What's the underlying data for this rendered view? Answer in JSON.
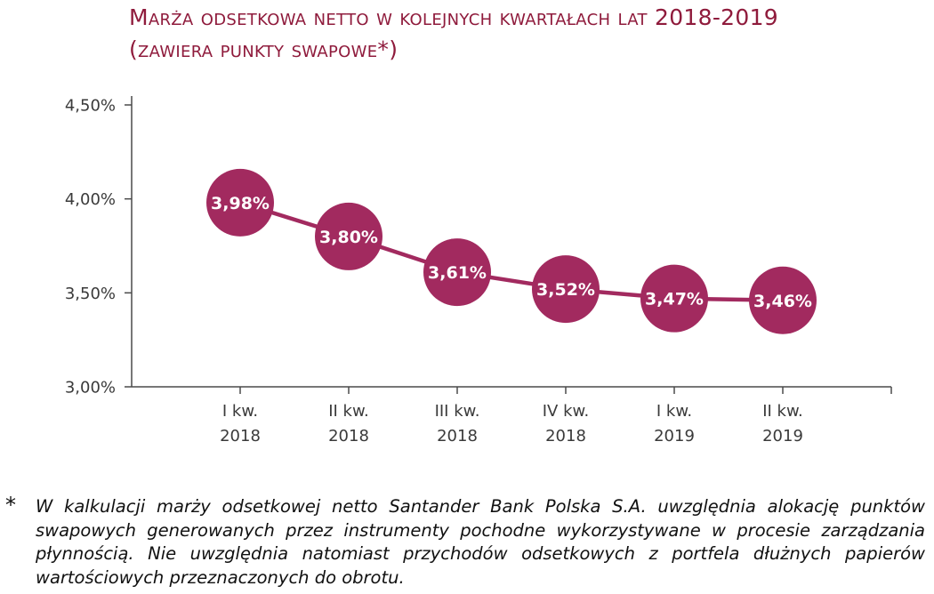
{
  "title": {
    "line1": "Marża odsetkowa netto w kolejnych kwartałach lat 2018-2019",
    "line2": "(zawiera punkty swapowe*)"
  },
  "chart_data": {
    "type": "line",
    "title": "Marża odsetkowa netto w kolejnych kwartałach lat 2018-2019 (zawiera punkty swapowe*)",
    "categories": [
      [
        "I kw.",
        "2018"
      ],
      [
        "II kw.",
        "2018"
      ],
      [
        "III kw.",
        "2018"
      ],
      [
        "IV kw.",
        "2018"
      ],
      [
        "I kw.",
        "2019"
      ],
      [
        "II kw.",
        "2019"
      ]
    ],
    "values": [
      3.98,
      3.8,
      3.61,
      3.52,
      3.47,
      3.46
    ],
    "value_labels": [
      "3,98%",
      "3,80%",
      "3,61%",
      "3,52%",
      "3,47%",
      "3,46%"
    ],
    "xlabel": "",
    "ylabel": "",
    "ylim": [
      3.0,
      4.5
    ],
    "ytick_step": 0.5,
    "ytick_labels": [
      "3,00%",
      "3,50%",
      "4,00%",
      "4,50%"
    ],
    "grid": false,
    "legend": "none",
    "marker_color": "#A22A5F",
    "line_color": "#A22A5F",
    "axis_color": "#4A4A4A"
  },
  "footnote": {
    "marker": "*",
    "text": "W kalkulacji marży odsetkowej netto Santander Bank Polska S.A. uwzględnia alokację punktów swapowych generowanych przez instrumenty pochodne wykorzystywane w procesie zarządzania płynnością. Nie uwzględnia natomiast przychodów odsetkowych z portfela dłużnych papierów wartościowych przeznaczonych do obrotu."
  }
}
